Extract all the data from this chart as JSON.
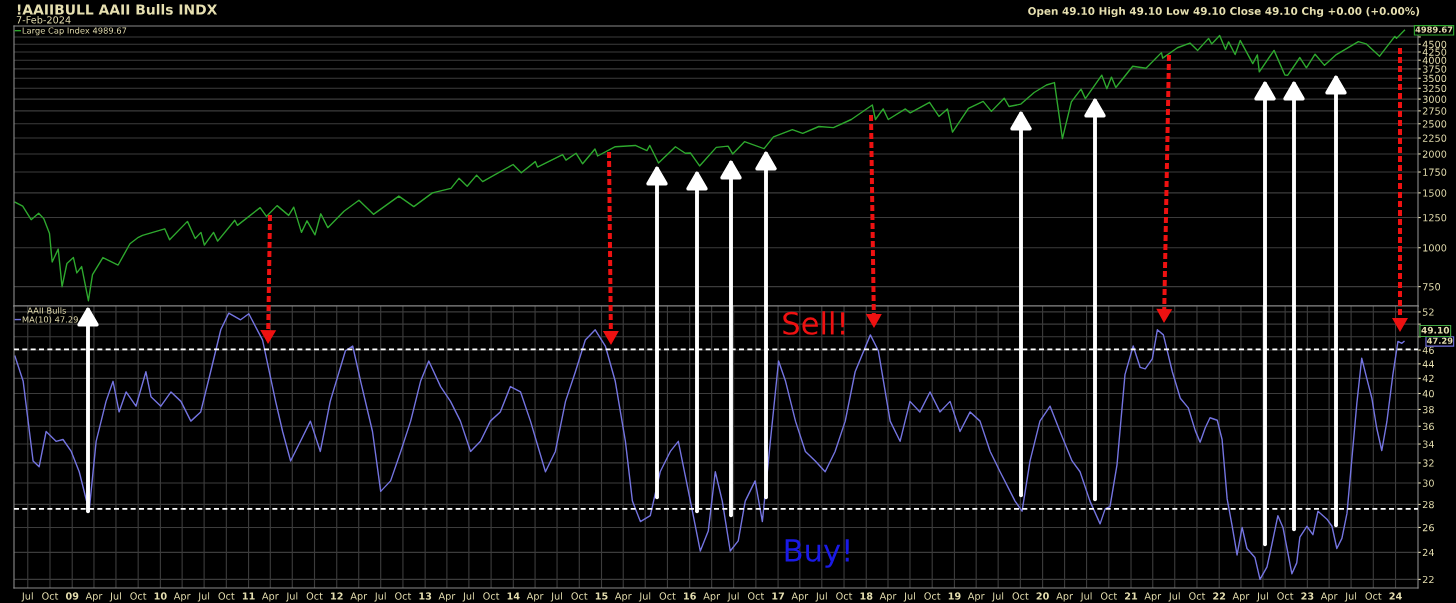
{
  "chart_data": [
    {
      "type": "line",
      "title": "!AAIIBULL AAII Bulls INDX",
      "subtitle": "7-Feb-2024",
      "annotations": [
        "Open 49.10 High 49.10 Low 49.10 Close 49.10 Chg +0.00 (+0.00%)",
        {
          "text": "4989.67",
          "x": "2024-02-07",
          "y": 4989.67
        }
      ],
      "x": [
        "2008-05-09",
        "2008-06-10",
        "2008-07-15",
        "2008-08-15",
        "2008-09-05",
        "2008-09-29",
        "2008-10-10",
        "2008-11-04",
        "2008-11-20",
        "2008-12-10",
        "2009-01-06",
        "2009-01-20",
        "2009-02-09",
        "2009-03-09",
        "2009-03-26",
        "2009-05-08",
        "2009-07-10",
        "2009-08-28",
        "2009-10-02",
        "2009-10-19",
        "2010-01-19",
        "2010-02-08",
        "2010-04-23",
        "2010-05-25",
        "2010-06-18",
        "2010-07-02",
        "2010-08-09",
        "2010-08-26",
        "2010-11-05",
        "2010-11-16",
        "2011-02-18",
        "2011-03-16",
        "2011-04-29",
        "2011-06-16",
        "2011-07-07",
        "2011-08-08",
        "2011-08-31",
        "2011-10-03",
        "2011-10-27",
        "2011-11-25",
        "2012-01-31",
        "2012-04-02",
        "2012-06-01",
        "2012-09-14",
        "2012-11-15",
        "2013-01-31",
        "2013-04-18",
        "2013-05-21",
        "2013-06-24",
        "2013-08-02",
        "2013-08-27",
        "2013-12-31",
        "2014-02-03",
        "2014-04-02",
        "2014-04-11",
        "2014-07-24",
        "2014-08-07",
        "2014-09-18",
        "2014-10-15",
        "2014-12-05",
        "2014-12-16",
        "2015-02-27",
        "2015-05-21",
        "2015-07-08",
        "2015-07-20",
        "2015-08-25",
        "2015-11-03",
        "2015-12-14",
        "2016-01-04",
        "2016-02-11",
        "2016-04-20",
        "2016-06-08",
        "2016-06-27",
        "2016-08-15",
        "2016-11-04",
        "2016-12-13",
        "2017-03-01",
        "2017-04-13",
        "2017-06-19",
        "2017-08-18",
        "2017-10-31",
        "2018-01-26",
        "2018-02-08",
        "2018-03-12",
        "2018-04-02",
        "2018-06-12",
        "2018-07-02",
        "2018-09-20",
        "2018-10-29",
        "2018-12-03",
        "2018-12-24",
        "2019-02-28",
        "2019-04-30",
        "2019-06-03",
        "2019-07-26",
        "2019-08-15",
        "2019-10-02",
        "2019-11-27",
        "2020-01-17",
        "2020-02-19",
        "2020-03-23",
        "2020-04-29",
        "2020-06-08",
        "2020-06-26",
        "2020-09-02",
        "2020-09-23",
        "2020-10-12",
        "2020-10-30",
        "2021-01-08",
        "2021-03-04",
        "2021-05-07",
        "2021-05-12",
        "2021-07-12",
        "2021-09-02",
        "2021-10-04",
        "2021-11-18",
        "2021-12-01",
        "2022-01-03",
        "2022-01-27",
        "2022-02-09",
        "2022-03-08",
        "2022-03-29",
        "2022-05-20",
        "2022-06-08",
        "2022-06-16",
        "2022-08-16",
        "2022-09-30",
        "2022-10-12",
        "2022-12-01",
        "2022-12-28",
        "2023-02-02",
        "2023-03-13",
        "2023-05-01",
        "2023-07-31",
        "2023-09-01",
        "2023-10-27",
        "2023-12-29",
        "2024-01-05",
        "2024-02-07"
      ],
      "series": [
        {
          "name": "Large Cap Index 4989.67",
          "color": "#2ea82e",
          "values": [
            1400,
            1360,
            1230,
            1290,
            1240,
            1110,
            900,
            990,
            750,
            890,
            930,
            830,
            870,
            676,
            820,
            930,
            880,
            1030,
            1080,
            1095,
            1150,
            1060,
            1215,
            1070,
            1120,
            1020,
            1120,
            1050,
            1225,
            1180,
            1345,
            1260,
            1365,
            1270,
            1350,
            1120,
            1220,
            1100,
            1285,
            1160,
            1310,
            1420,
            1280,
            1465,
            1355,
            1500,
            1550,
            1670,
            1575,
            1710,
            1630,
            1850,
            1740,
            1890,
            1815,
            1990,
            1910,
            2010,
            1860,
            2075,
            1970,
            2110,
            2130,
            2050,
            2130,
            1870,
            2110,
            2010,
            2015,
            1830,
            2100,
            2120,
            2000,
            2190,
            2080,
            2270,
            2395,
            2330,
            2450,
            2430,
            2580,
            2873,
            2580,
            2790,
            2580,
            2790,
            2710,
            2930,
            2640,
            2790,
            2350,
            2800,
            2950,
            2740,
            3020,
            2840,
            2890,
            3150,
            3330,
            3390,
            2240,
            2940,
            3230,
            3010,
            3580,
            3240,
            3530,
            3270,
            3825,
            3770,
            4230,
            4060,
            4385,
            4540,
            4300,
            4700,
            4510,
            4800,
            4330,
            4580,
            4170,
            4630,
            3900,
            4160,
            3670,
            4300,
            3585,
            3580,
            4080,
            3780,
            4180,
            3850,
            4170,
            4590,
            4515,
            4120,
            4770,
            4700,
            4989.67
          ]
        }
      ],
      "xlim": [
        "2008-05-05",
        "2024-04-03"
      ],
      "ylim": [
        650,
        5150
      ],
      "log": "y",
      "yticks": [
        750,
        1000,
        1250,
        1500,
        1750,
        2000,
        2250,
        2500,
        2750,
        3000,
        3250,
        3500,
        3750,
        4000,
        4250,
        4500,
        {
          "value": 4750,
          "label": null
        }
      ],
      "tick_labels": "y",
      "grid": true,
      "legend": "top left"
    },
    {
      "type": "line",
      "legend_title": "AAII Bulls",
      "annotations": [
        "Sell!",
        "Buy!",
        "49.10",
        {
          "text": "47.29",
          "x": "2024-02-05",
          "y": 47.29
        }
      ],
      "x": [
        "2008-05-09",
        "2008-06-12",
        "2008-07-23",
        "2008-08-17",
        "2008-09-15",
        "2008-10-26",
        "2008-11-24",
        "2008-12-28",
        "2009-01-30",
        "2009-03-12",
        "2009-04-10",
        "2009-05-21",
        "2009-06-19",
        "2009-07-14",
        "2009-08-12",
        "2009-09-22",
        "2009-11-02",
        "2009-11-23",
        "2010-01-03",
        "2010-02-14",
        "2010-03-27",
        "2010-05-07",
        "2010-06-17",
        "2010-07-28",
        "2010-09-08",
        "2010-10-11",
        "2010-11-29",
        "2011-01-02",
        "2011-02-28",
        "2011-04-23",
        "2011-05-22",
        "2011-06-24",
        "2011-08-04",
        "2011-09-14",
        "2011-10-25",
        "2011-12-05",
        "2012-02-06",
        "2012-03-07",
        "2012-04-09",
        "2012-05-28",
        "2012-07-01",
        "2012-08-11",
        "2012-09-22",
        "2012-11-02",
        "2012-12-13",
        "2013-01-16",
        "2013-03-06",
        "2013-04-16",
        "2013-05-27",
        "2013-07-08",
        "2013-08-18",
        "2013-09-28",
        "2013-11-08",
        "2013-12-20",
        "2014-01-31",
        "2014-03-13",
        "2014-05-14",
        "2014-06-24",
        "2014-08-05",
        "2014-09-15",
        "2014-10-26",
        "2014-12-06",
        "2015-01-17",
        "2015-02-27",
        "2015-04-10",
        "2015-05-09",
        "2015-06-11",
        "2015-07-22",
        "2015-09-01",
        "2015-10-13",
        "2015-11-15",
        "2016-01-04",
        "2016-02-14",
        "2016-03-18",
        "2016-04-16",
        "2016-05-15",
        "2016-06-17",
        "2016-07-20",
        "2016-08-18",
        "2016-09-28",
        "2016-10-28",
        "2016-11-30",
        "2017-01-03",
        "2017-02-01",
        "2017-03-14",
        "2017-04-24",
        "2017-06-04",
        "2017-07-15",
        "2017-08-25",
        "2017-10-06",
        "2017-11-16",
        "2018-01-18",
        "2018-02-20",
        "2018-04-10",
        "2018-05-21",
        "2018-07-01",
        "2018-08-11",
        "2018-09-22",
        "2018-11-02",
        "2018-12-14",
        "2019-01-24",
        "2019-03-07",
        "2019-04-17",
        "2019-05-29",
        "2019-07-09",
        "2019-09-09",
        "2019-10-08",
        "2019-11-10",
        "2019-12-21",
        "2020-02-01",
        "2020-03-13",
        "2020-05-02",
        "2020-06-04",
        "2020-07-15",
        "2020-08-26",
        "2020-09-16",
        "2020-10-06",
        "2020-11-04",
        "2020-12-07",
        "2021-01-10",
        "2021-02-08",
        "2021-03-01",
        "2021-03-30",
        "2021-04-20",
        "2021-05-15",
        "2021-06-21",
        "2021-07-24",
        "2021-08-26",
        "2021-09-24",
        "2021-10-14",
        "2021-11-04",
        "2021-11-24",
        "2021-12-24",
        "2022-01-13",
        "2022-02-03",
        "2022-02-23",
        "2022-03-16",
        "2022-04-06",
        "2022-04-26",
        "2022-05-29",
        "2022-06-19",
        "2022-07-18",
        "2022-08-07",
        "2022-09-01",
        "2022-09-22",
        "2022-10-29",
        "2022-11-18",
        "2022-12-01",
        "2022-12-30",
        "2023-01-24",
        "2023-02-14",
        "2023-03-23",
        "2023-04-13",
        "2023-05-03",
        "2023-05-24",
        "2023-06-14",
        "2023-07-25",
        "2023-08-14",
        "2023-09-04",
        "2023-09-25",
        "2023-10-15",
        "2023-11-05",
        "2023-11-26",
        "2023-12-21",
        "2024-01-11",
        "2024-01-27",
        "2024-02-05"
      ],
      "series": [
        {
          "name": "MA(10) 47.29",
          "color": "#7474e0",
          "values": [
            45.1,
            41.6,
            32.2,
            31.6,
            35.4,
            34.3,
            34.5,
            33.2,
            31.1,
            27.4,
            34.3,
            39.0,
            41.6,
            37.7,
            40.2,
            38.4,
            42.9,
            39.6,
            38.4,
            40.2,
            39.0,
            36.6,
            37.7,
            42.9,
            49.1,
            51.8,
            50.7,
            51.7,
            47.5,
            39.0,
            35.4,
            32.2,
            34.3,
            36.6,
            33.2,
            39.0,
            45.9,
            46.6,
            41.6,
            35.4,
            29.2,
            30.2,
            33.2,
            36.6,
            41.6,
            44.4,
            40.9,
            39.0,
            36.6,
            33.2,
            34.3,
            36.6,
            37.7,
            40.9,
            40.2,
            36.6,
            31.1,
            33.2,
            39.0,
            42.9,
            47.5,
            49.1,
            46.6,
            41.6,
            34.3,
            28.3,
            26.5,
            27.0,
            31.1,
            33.2,
            34.3,
            28.3,
            24.1,
            25.7,
            31.1,
            28.3,
            24.1,
            24.9,
            28.3,
            30.2,
            26.5,
            34.3,
            44.4,
            41.6,
            36.6,
            33.2,
            32.2,
            31.1,
            33.2,
            36.6,
            42.9,
            48.3,
            45.9,
            36.6,
            34.3,
            39.0,
            37.7,
            40.2,
            37.7,
            39.0,
            35.4,
            37.7,
            36.6,
            33.2,
            31.1,
            28.3,
            27.4,
            32.2,
            36.6,
            38.4,
            35.4,
            32.2,
            31.1,
            28.3,
            26.3,
            27.6,
            27.8,
            31.8,
            42.5,
            46.6,
            43.5,
            43.3,
            44.7,
            49.1,
            48.3,
            42.9,
            39.4,
            38.2,
            35.5,
            34.2,
            35.8,
            37.0,
            36.7,
            34.5,
            28.5,
            26.2,
            23.8,
            26.0,
            24.3,
            23.6,
            22.0,
            22.9,
            24.6,
            27.0,
            26.0,
            22.4,
            23.2,
            25.2,
            26.1,
            25.4,
            27.4,
            26.7,
            26.1,
            24.3,
            25.1,
            27.2,
            38.8,
            44.8,
            42.0,
            39.4,
            35.8,
            33.3,
            36.5,
            42.5,
            47.3,
            47.0,
            47.3
          ]
        }
      ],
      "xlim": [
        "2008-05-05",
        "2024-04-03"
      ],
      "ylim": [
        21.4,
        53
      ],
      "log": "y",
      "yticks": [
        22,
        24,
        26,
        28,
        30,
        32,
        34,
        36,
        38,
        40,
        42,
        44,
        46,
        {
          "value": 48,
          "label": null
        },
        {
          "value": 50,
          "label": null
        },
        52
      ],
      "xticks": [
        {
          "value": "2008-07-01",
          "label": "Jul"
        },
        {
          "value": "2008-10-01",
          "label": "Oct"
        },
        {
          "value": "2009-01-01",
          "label": "09"
        },
        {
          "value": "2009-04-01",
          "label": "Apr"
        },
        {
          "value": "2009-07-01",
          "label": "Jul"
        },
        {
          "value": "2009-10-01",
          "label": "Oct"
        },
        {
          "value": "2010-01-01",
          "label": "10"
        },
        {
          "value": "2010-04-01",
          "label": "Apr"
        },
        {
          "value": "2010-07-01",
          "label": "Jul"
        },
        {
          "value": "2010-10-01",
          "label": "Oct"
        },
        {
          "value": "2011-01-01",
          "label": "11"
        },
        {
          "value": "2011-04-01",
          "label": "Apr"
        },
        {
          "value": "2011-07-01",
          "label": "Jul"
        },
        {
          "value": "2011-10-01",
          "label": "Oct"
        },
        {
          "value": "2012-01-01",
          "label": "12"
        },
        {
          "value": "2012-04-01",
          "label": "Apr"
        },
        {
          "value": "2012-07-01",
          "label": "Jul"
        },
        {
          "value": "2012-10-01",
          "label": "Oct"
        },
        {
          "value": "2013-01-01",
          "label": "13"
        },
        {
          "value": "2013-04-01",
          "label": "Apr"
        },
        {
          "value": "2013-07-01",
          "label": "Jul"
        },
        {
          "value": "2013-10-01",
          "label": "Oct"
        },
        {
          "value": "2014-01-01",
          "label": "14"
        },
        {
          "value": "2014-04-01",
          "label": "Apr"
        },
        {
          "value": "2014-07-01",
          "label": "Jul"
        },
        {
          "value": "2014-10-01",
          "label": "Oct"
        },
        {
          "value": "2015-01-01",
          "label": "15"
        },
        {
          "value": "2015-04-01",
          "label": "Apr"
        },
        {
          "value": "2015-07-01",
          "label": "Jul"
        },
        {
          "value": "2015-10-01",
          "label": "Oct"
        },
        {
          "value": "2016-01-01",
          "label": "16"
        },
        {
          "value": "2016-04-01",
          "label": "Apr"
        },
        {
          "value": "2016-07-01",
          "label": "Jul"
        },
        {
          "value": "2016-10-01",
          "label": "Oct"
        },
        {
          "value": "2017-01-01",
          "label": "17"
        },
        {
          "value": "2017-04-01",
          "label": "Apr"
        },
        {
          "value": "2017-07-01",
          "label": "Jul"
        },
        {
          "value": "2017-10-01",
          "label": "Oct"
        },
        {
          "value": "2018-01-01",
          "label": "18"
        },
        {
          "value": "2018-04-01",
          "label": "Apr"
        },
        {
          "value": "2018-07-01",
          "label": "Jul"
        },
        {
          "value": "2018-10-01",
          "label": "Oct"
        },
        {
          "value": "2019-01-01",
          "label": "19"
        },
        {
          "value": "2019-04-01",
          "label": "Apr"
        },
        {
          "value": "2019-07-01",
          "label": "Jul"
        },
        {
          "value": "2019-10-01",
          "label": "Oct"
        },
        {
          "value": "2020-01-01",
          "label": "20"
        },
        {
          "value": "2020-04-01",
          "label": "Apr"
        },
        {
          "value": "2020-07-01",
          "label": "Jul"
        },
        {
          "value": "2020-10-01",
          "label": "Oct"
        },
        {
          "value": "2021-01-01",
          "label": "21"
        },
        {
          "value": "2021-04-01",
          "label": "Apr"
        },
        {
          "value": "2021-07-01",
          "label": "Jul"
        },
        {
          "value": "2021-10-01",
          "label": "Oct"
        },
        {
          "value": "2022-01-01",
          "label": "22"
        },
        {
          "value": "2022-04-01",
          "label": "Apr"
        },
        {
          "value": "2022-07-01",
          "label": "Jul"
        },
        {
          "value": "2022-10-01",
          "label": "Oct"
        },
        {
          "value": "2023-01-01",
          "label": "23"
        },
        {
          "value": "2023-04-01",
          "label": "Apr"
        },
        {
          "value": "2023-07-01",
          "label": "Jul"
        },
        {
          "value": "2023-10-01",
          "label": "Oct"
        },
        {
          "value": "2024-01-01",
          "label": "24"
        }
      ],
      "ref_lines": [
        {
          "axis": "y",
          "value": 46.1,
          "color": "#ffffff",
          "line_style": "dashed"
        },
        {
          "axis": "y",
          "value": 27.6,
          "color": "#ffffff",
          "line_style": "dashed"
        }
      ],
      "grid": true,
      "legend": "top left"
    }
  ]
}
